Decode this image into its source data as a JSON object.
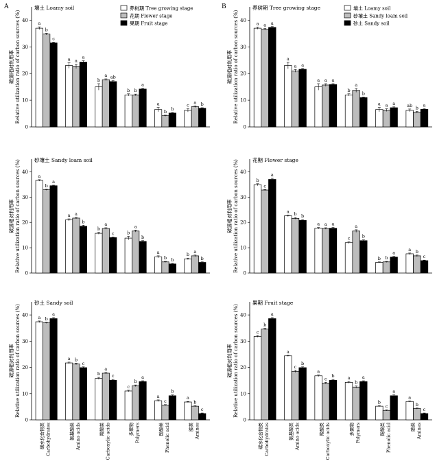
{
  "panel_letters": [
    "A",
    "B"
  ],
  "y_axis_label": {
    "cn": "碳源相对利用率",
    "en": "Relative utilization ratio of carbon sources (%)"
  },
  "colors": {
    "bar1": "#ffffff",
    "bar2": "#bdbdbd",
    "bar3": "#000000"
  },
  "chart_data": [
    {
      "type": "bar",
      "title": "壤土 Loamy soil",
      "categories": [
        {
          "cn": "碳水化合物类",
          "en": "Carbohydrates"
        },
        {
          "cn": "氨基酸类",
          "en": "Amino acids"
        },
        {
          "cn": "羧酸类",
          "en": "Carboxylic acids"
        },
        {
          "cn": "多聚物",
          "en": "Polymers"
        },
        {
          "cn": "酚酸类",
          "en": "Phenolic acid"
        },
        {
          "cn": "胺类",
          "en": "Amines"
        }
      ],
      "series": [
        {
          "name": "养树期 Tree growing stage",
          "values": [
            37.0,
            23.0,
            15.0,
            12.0,
            6.5,
            6.2
          ],
          "errors": [
            0.5,
            1.0,
            1.2,
            0.4,
            0.8,
            0.6
          ],
          "sig": [
            "a",
            "a",
            "b",
            "b",
            "a",
            "c"
          ]
        },
        {
          "name": "花期 Flower stage",
          "values": [
            34.8,
            22.7,
            17.7,
            12.0,
            4.2,
            7.6
          ],
          "errors": [
            0.3,
            0.8,
            0.3,
            0.3,
            0.2,
            0.3
          ],
          "sig": [
            "b",
            "a",
            "a",
            "b",
            "b",
            "a"
          ]
        },
        {
          "name": "果期 Fruit stage",
          "values": [
            31.5,
            24.3,
            17.0,
            14.2,
            5.2,
            7.0
          ],
          "errors": [
            0.3,
            0.5,
            0.3,
            0.3,
            0.2,
            0.2
          ],
          "sig": [
            "c",
            "a",
            "ab",
            "a",
            "b",
            "b"
          ]
        }
      ],
      "ylim": [
        0,
        45
      ],
      "yticks": [
        0,
        10,
        20,
        30,
        40
      ],
      "legend": "top-center"
    },
    {
      "type": "bar",
      "title": "养树期 Tree growing stage",
      "categories": [
        {
          "cn": "碳水化合物类",
          "en": "Carbohydrates"
        },
        {
          "cn": "氨基酸类",
          "en": "Amino acids"
        },
        {
          "cn": "羧酸类",
          "en": "Carboxylic acids"
        },
        {
          "cn": "多聚物",
          "en": "Polymers"
        },
        {
          "cn": "酚酸类",
          "en": "Phenolic acid"
        },
        {
          "cn": "胺类",
          "en": "Amines"
        }
      ],
      "series": [
        {
          "name": "壤土 Loamy soil",
          "values": [
            37.0,
            23.0,
            15.0,
            12.0,
            6.5,
            6.2
          ],
          "errors": [
            0.4,
            1.2,
            1.2,
            0.4,
            0.8,
            0.5
          ],
          "sig": [
            "a",
            "a",
            "a",
            "b",
            "a",
            "ab"
          ]
        },
        {
          "name": "砂壤土 Sandy loam soil",
          "values": [
            36.6,
            21.0,
            15.7,
            13.7,
            6.3,
            5.5
          ],
          "errors": [
            0.3,
            0.5,
            0.5,
            0.7,
            0.5,
            0.3
          ],
          "sig": [
            "a",
            "a",
            "a",
            "a",
            "a",
            "b"
          ]
        },
        {
          "name": "砂土 Sandy soil",
          "values": [
            37.3,
            21.6,
            15.9,
            11.0,
            7.2,
            6.6
          ],
          "errors": [
            0.3,
            0.3,
            0.3,
            0.2,
            0.3,
            0.2
          ],
          "sig": [
            "a",
            "a",
            "a",
            "b",
            "a",
            "a"
          ]
        }
      ],
      "ylim": [
        0,
        45
      ],
      "yticks": [
        0,
        10,
        20,
        30,
        40
      ],
      "legend": "top-center"
    },
    {
      "type": "bar",
      "title": "砂壤土 Sandy loam soil",
      "categories": [
        {
          "cn": "碳水化合物类",
          "en": "Carbohydrates"
        },
        {
          "cn": "氨基酸类",
          "en": "Amino acids"
        },
        {
          "cn": "羧酸类",
          "en": "Carboxylic acids"
        },
        {
          "cn": "多聚物",
          "en": "Polymers"
        },
        {
          "cn": "酚酸类",
          "en": "Phenolic acid"
        },
        {
          "cn": "胺类",
          "en": "Amines"
        }
      ],
      "series": [
        {
          "name": "养树期 Tree growing stage",
          "values": [
            36.6,
            21.0,
            15.7,
            13.8,
            6.4,
            5.6
          ],
          "errors": [
            0.3,
            0.4,
            0.4,
            0.7,
            0.4,
            0.3
          ],
          "sig": [
            "a",
            "a",
            "b",
            "b",
            "a",
            "b"
          ]
        },
        {
          "name": "花期 Flower stage",
          "values": [
            32.9,
            21.7,
            17.6,
            16.6,
            4.4,
            6.8
          ],
          "errors": [
            0.2,
            0.3,
            0.3,
            0.4,
            0.2,
            0.3
          ],
          "sig": [
            "b",
            "a",
            "a",
            "a",
            "b",
            "a"
          ]
        },
        {
          "name": "果期 Fruit stage",
          "values": [
            34.5,
            18.5,
            14.0,
            12.5,
            3.6,
            4.2
          ],
          "errors": [
            0.2,
            0.4,
            0.2,
            0.3,
            0.2,
            0.2
          ],
          "sig": [
            "a",
            "b",
            "c",
            "b",
            "b",
            "b"
          ]
        }
      ],
      "ylim": [
        0,
        45
      ],
      "yticks": [
        0,
        10,
        20,
        30,
        40
      ],
      "legend": "none"
    },
    {
      "type": "bar",
      "title": "花期 Flower stage",
      "categories": [
        {
          "cn": "碳水化合物类",
          "en": "Carbohydrates"
        },
        {
          "cn": "氨基酸类",
          "en": "Amino acids"
        },
        {
          "cn": "羧酸类",
          "en": "Carboxylic acids"
        },
        {
          "cn": "多聚物",
          "en": "Polymers"
        },
        {
          "cn": "酚酸类",
          "en": "Phenolic acid"
        },
        {
          "cn": "胺类",
          "en": "Amines"
        }
      ],
      "series": [
        {
          "name": "壤土 Loamy soil",
          "values": [
            34.9,
            22.6,
            17.7,
            12.0,
            4.2,
            7.6
          ],
          "errors": [
            0.4,
            0.3,
            0.3,
            0.3,
            0.2,
            0.3
          ],
          "sig": [
            "b",
            "a",
            "a",
            "c",
            "b",
            "a"
          ]
        },
        {
          "name": "砂壤土 Sandy loam soil",
          "values": [
            32.8,
            21.6,
            17.6,
            16.6,
            4.4,
            6.8
          ],
          "errors": [
            0.2,
            0.3,
            0.3,
            0.5,
            0.2,
            0.3
          ],
          "sig": [
            "c",
            "b",
            "a",
            "a",
            "b",
            "b"
          ]
        },
        {
          "name": "砂土 Sandy soil",
          "values": [
            37.0,
            20.8,
            17.7,
            12.8,
            6.3,
            4.9
          ],
          "errors": [
            0.4,
            0.3,
            0.3,
            0.3,
            0.3,
            0.2
          ],
          "sig": [
            "a",
            "b",
            "a",
            "b",
            "a",
            "c"
          ]
        }
      ],
      "ylim": [
        0,
        45
      ],
      "yticks": [
        0,
        10,
        20,
        30,
        40
      ],
      "legend": "none"
    },
    {
      "type": "bar",
      "title": "砂土 Sandy soil",
      "categories": [
        {
          "cn": "碳水化合物类",
          "en": "Carbohydrates"
        },
        {
          "cn": "氨基酸类",
          "en": "Amino acids"
        },
        {
          "cn": "羧酸类",
          "en": "Carboxylic acids"
        },
        {
          "cn": "多聚物",
          "en": "Polymers"
        },
        {
          "cn": "酚酸类",
          "en": "Phenolic acid"
        },
        {
          "cn": "胺类",
          "en": "Amines"
        }
      ],
      "series": [
        {
          "name": "养树期 Tree growing stage",
          "values": [
            37.4,
            21.7,
            15.8,
            11.0,
            7.3,
            6.8
          ],
          "errors": [
            0.3,
            0.3,
            0.4,
            0.3,
            0.3,
            0.2
          ],
          "sig": [
            "a",
            "a",
            "b",
            "c",
            "a",
            "a"
          ]
        },
        {
          "name": "花期 Flower stage",
          "values": [
            37.0,
            21.3,
            17.8,
            13.0,
            5.6,
            5.2
          ],
          "errors": [
            0.2,
            0.3,
            0.3,
            0.3,
            0.2,
            0.2
          ],
          "sig": [
            "b",
            "b",
            "a",
            "b",
            "c",
            "b"
          ]
        },
        {
          "name": "果期 Fruit stage",
          "values": [
            38.6,
            19.9,
            15.1,
            14.6,
            9.2,
            2.4
          ],
          "errors": [
            0.4,
            0.3,
            0.3,
            0.3,
            0.3,
            0.2
          ],
          "sig": [
            "a",
            "c",
            "c",
            "a",
            "b",
            "c"
          ]
        }
      ],
      "ylim": [
        0,
        45
      ],
      "yticks": [
        0,
        10,
        20,
        30,
        40
      ],
      "legend": "none"
    },
    {
      "type": "bar",
      "title": "果期 Fruit stage",
      "categories": [
        {
          "cn": "碳水化合物类",
          "en": "Carbohydrates"
        },
        {
          "cn": "氨基酸类",
          "en": "Amino acids"
        },
        {
          "cn": "羧酸类",
          "en": "Carboxylic acids"
        },
        {
          "cn": "多聚物",
          "en": "Polymers"
        },
        {
          "cn": "酚酸类",
          "en": "Phenolic acid"
        },
        {
          "cn": "胺类",
          "en": "Amines"
        }
      ],
      "series": [
        {
          "name": "壤土 Loamy soil",
          "values": [
            31.8,
            24.4,
            16.8,
            14.3,
            5.2,
            7.0
          ],
          "errors": [
            0.3,
            0.2,
            0.3,
            0.3,
            0.2,
            0.2
          ],
          "sig": [
            "c",
            "a",
            "a",
            "a",
            "b",
            "a"
          ]
        },
        {
          "name": "砂壤土 Sandy loam soil",
          "values": [
            34.6,
            18.5,
            14.0,
            12.5,
            3.6,
            4.3
          ],
          "errors": [
            0.3,
            0.4,
            0.3,
            0.4,
            0.2,
            0.2
          ],
          "sig": [
            "b",
            "c",
            "c",
            "b",
            "c",
            "b"
          ]
        },
        {
          "name": "砂土 Sandy soil",
          "values": [
            38.6,
            19.9,
            15.1,
            14.6,
            9.2,
            2.4
          ],
          "errors": [
            0.4,
            0.3,
            0.3,
            0.3,
            0.3,
            0.2
          ],
          "sig": [
            "a",
            "b",
            "b",
            "a",
            "a",
            "c"
          ]
        }
      ],
      "ylim": [
        0,
        45
      ],
      "yticks": [
        0,
        10,
        20,
        30,
        40
      ],
      "legend": "none"
    }
  ]
}
